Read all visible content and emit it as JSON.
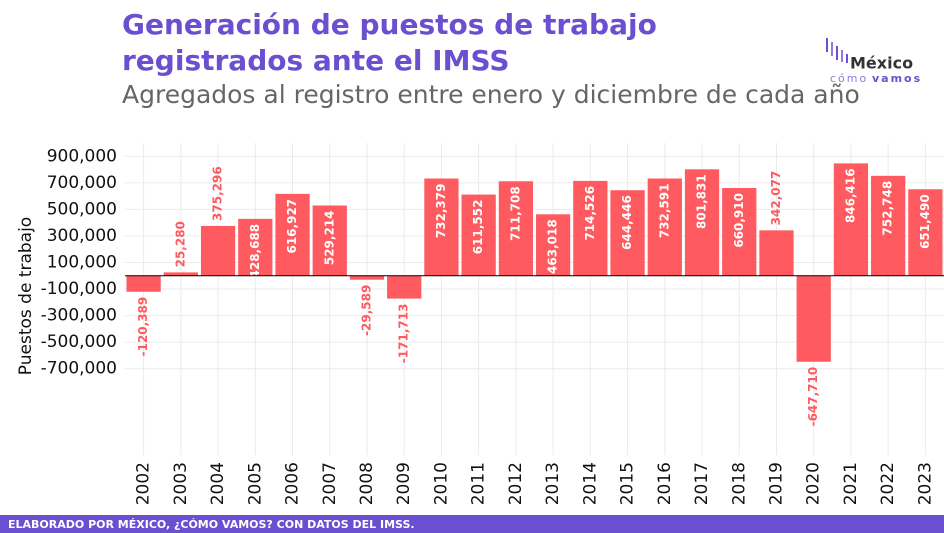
{
  "chart_data": {
    "type": "bar",
    "title": "Generación de puestos de trabajo registrados ante el IMSS",
    "subtitle": "Agregados al registro entre enero y diciembre de cada año",
    "y_label": "Puestos de trabajo",
    "logo": {
      "name": "México",
      "tagline_a": "cómo",
      "tagline_b": "vamos"
    },
    "footer": "ELABORADO POR MÉXICO, ¿CÓMO VAMOS? CON DATOS DEL IMSS.",
    "categories": [
      "2002",
      "2003",
      "2004",
      "2005",
      "2006",
      "2007",
      "2008",
      "2009",
      "2010",
      "2011",
      "2012",
      "2013",
      "2014",
      "2015",
      "2016",
      "2017",
      "2018",
      "2019",
      "2020",
      "2021",
      "2022",
      "2023"
    ],
    "values": [
      -120389,
      25280,
      375296,
      428688,
      616927,
      529214,
      -29589,
      -171713,
      732379,
      611552,
      711708,
      463018,
      714526,
      644446,
      732591,
      801831,
      660910,
      342077,
      -647710,
      846416,
      752748,
      651490
    ],
    "value_labels": [
      "-120,389",
      "25,280",
      "375,296",
      "428,688",
      "616,927",
      "529,214",
      "-29,589",
      "-171,713",
      "732,379",
      "611,552",
      "711,708",
      "463,018",
      "714,526",
      "644,446",
      "732,591",
      "801,831",
      "660,910",
      "342,077",
      "-647,710",
      "846,416",
      "752,748",
      "651,490"
    ],
    "color": "#ff5a5f",
    "ylim": [
      -1350000,
      1000000
    ],
    "yticks": [
      {
        "value": 900000,
        "label": "900,000"
      },
      {
        "value": 700000,
        "label": "700,000"
      },
      {
        "value": 500000,
        "label": "500,000"
      },
      {
        "value": 300000,
        "label": "300,000"
      },
      {
        "value": 100000,
        "label": "100,000"
      },
      {
        "value": -100000,
        "label": "-100,000"
      },
      {
        "value": -300000,
        "label": "-300,000"
      },
      {
        "value": -500000,
        "label": "-500,000"
      },
      {
        "value": -700000,
        "label": "-700,000"
      }
    ],
    "grid": true
  }
}
